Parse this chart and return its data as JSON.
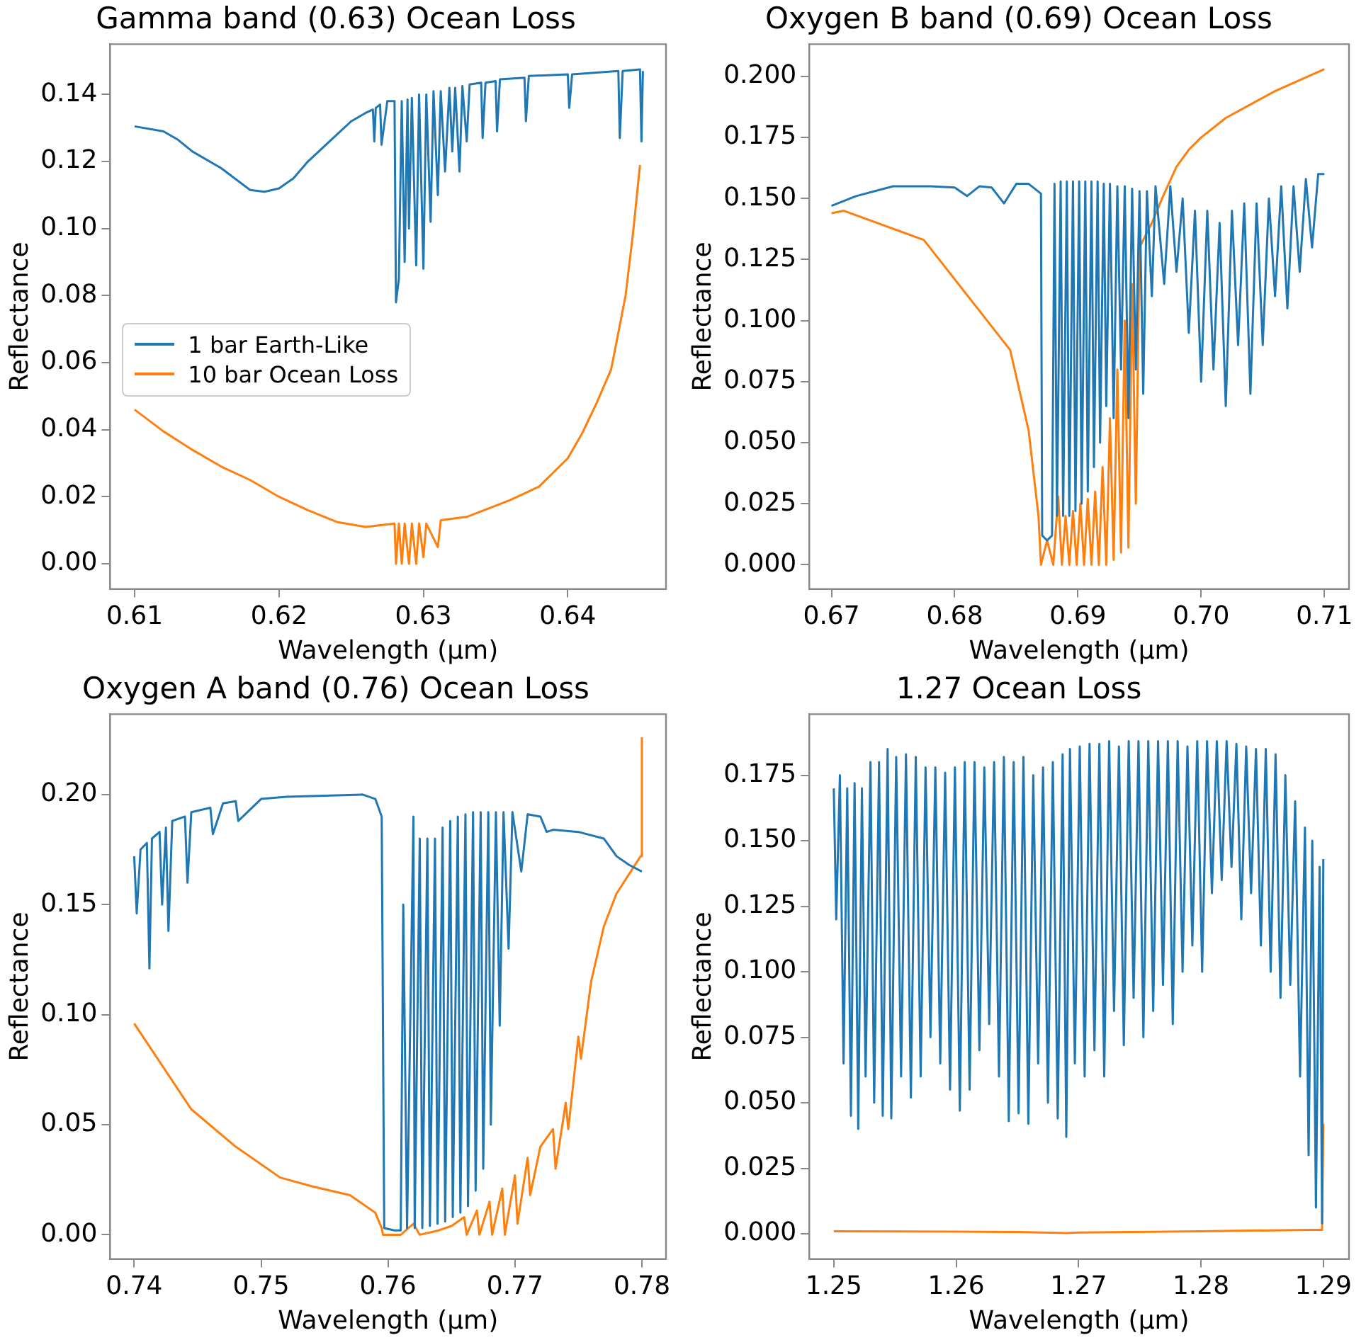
{
  "chart_data": [
    {
      "type": "line",
      "title": "Gamma band (0.63) Ocean Loss",
      "xlabel": "Wavelength (μm)",
      "ylabel": "Reflectance",
      "legend": "center left",
      "grid": false,
      "xlim": [
        0.6083,
        0.6468
      ],
      "xticks": [
        0.61,
        0.62,
        0.63,
        0.64
      ],
      "ylim": [
        -0.0075,
        0.155
      ],
      "yticks": [
        {
          "value": 0,
          "label": "0.00"
        },
        {
          "value": 0.02,
          "label": "0.02"
        },
        {
          "value": 0.04,
          "label": "0.04"
        },
        {
          "value": 0.06,
          "label": "0.06"
        },
        {
          "value": 0.08,
          "label": "0.08"
        },
        {
          "value": 0.1,
          "label": "0.10"
        },
        {
          "value": 0.12,
          "label": "0.12"
        },
        {
          "value": 0.14,
          "label": "0.14"
        }
      ],
      "series": [
        {
          "name": "1 bar Earth-Like",
          "color": "#1f77b4",
          "x": [
            0.61,
            0.612,
            0.613,
            0.614,
            0.616,
            0.618,
            0.619,
            0.62,
            0.621,
            0.622,
            0.624,
            0.625,
            0.626,
            0.6265,
            0.6266,
            0.6267,
            0.627,
            0.6271,
            0.6275,
            0.628,
            0.6281,
            0.6283,
            0.6285,
            0.6287,
            0.6289,
            0.629,
            0.6292,
            0.6295,
            0.6297,
            0.63,
            0.6302,
            0.6305,
            0.6307,
            0.631,
            0.6312,
            0.6315,
            0.6318,
            0.632,
            0.6322,
            0.6325,
            0.6327,
            0.633,
            0.6332,
            0.634,
            0.6341,
            0.6343,
            0.635,
            0.6351,
            0.6353,
            0.637,
            0.6371,
            0.6373,
            0.64,
            0.6401,
            0.6403,
            0.6435,
            0.6436,
            0.6438,
            0.645,
            0.6451,
            0.6452
          ],
          "values": [
            0.1305,
            0.129,
            0.1265,
            0.123,
            0.118,
            0.1115,
            0.111,
            0.112,
            0.115,
            0.12,
            0.128,
            0.132,
            0.1345,
            0.1355,
            0.126,
            0.136,
            0.137,
            0.125,
            0.138,
            0.138,
            0.078,
            0.085,
            0.138,
            0.09,
            0.1385,
            0.1,
            0.139,
            0.089,
            0.14,
            0.088,
            0.14,
            0.102,
            0.141,
            0.11,
            0.141,
            0.117,
            0.142,
            0.123,
            0.142,
            0.117,
            0.1425,
            0.126,
            0.143,
            0.1435,
            0.127,
            0.1435,
            0.144,
            0.129,
            0.1445,
            0.145,
            0.132,
            0.1455,
            0.146,
            0.136,
            0.146,
            0.147,
            0.127,
            0.147,
            0.1475,
            0.126,
            0.147
          ]
        },
        {
          "name": "10 bar Ocean Loss",
          "color": "#ff7f0e",
          "x": [
            0.61,
            0.612,
            0.614,
            0.616,
            0.618,
            0.62,
            0.622,
            0.624,
            0.626,
            0.628,
            0.6281,
            0.6283,
            0.6285,
            0.6287,
            0.629,
            0.6292,
            0.6295,
            0.6297,
            0.63,
            0.6302,
            0.631,
            0.6312,
            0.633,
            0.636,
            0.638,
            0.64,
            0.641,
            0.642,
            0.643,
            0.644,
            0.6445,
            0.645
          ],
          "values": [
            0.046,
            0.0395,
            0.034,
            0.029,
            0.025,
            0.02,
            0.016,
            0.0125,
            0.011,
            0.012,
            0,
            0.012,
            0,
            0.012,
            0,
            0.012,
            0,
            0.012,
            0.002,
            0.012,
            0.005,
            0.013,
            0.014,
            0.019,
            0.023,
            0.0315,
            0.039,
            0.048,
            0.058,
            0.08,
            0.098,
            0.119
          ]
        }
      ]
    },
    {
      "type": "line",
      "title": "Oxygen B band (0.69) Ocean Loss",
      "xlabel": "Wavelength (μm)",
      "ylabel": "Reflectance",
      "grid": false,
      "xlim": [
        0.6682,
        0.712
      ],
      "xticks": [
        0.67,
        0.68,
        0.69,
        {
          "value": 0.7,
          "label": "0.70"
        },
        0.71
      ],
      "ylim": [
        -0.0099,
        0.2132
      ],
      "yticks": [
        {
          "value": 0,
          "label": "0.000"
        },
        0.025,
        {
          "value": 0.05,
          "label": "0.050"
        },
        0.075,
        {
          "value": 0.1,
          "label": "0.100"
        },
        0.125,
        {
          "value": 0.15,
          "label": "0.150"
        },
        0.175,
        {
          "value": 0.2,
          "label": "0.200"
        }
      ],
      "series": [
        {
          "color": "#1f77b4",
          "x": [
            0.67,
            0.672,
            0.675,
            0.678,
            0.68,
            0.681,
            0.682,
            0.683,
            0.684,
            0.685,
            0.686,
            0.687,
            0.6871,
            0.6875,
            0.6879,
            0.6881,
            0.6883,
            0.6886,
            0.6888,
            0.6891,
            0.6893,
            0.6896,
            0.6898,
            0.6901,
            0.6903,
            0.6906,
            0.6908,
            0.6911,
            0.6913,
            0.6916,
            0.6918,
            0.6921,
            0.6923,
            0.6926,
            0.6929,
            0.6932,
            0.6935,
            0.6938,
            0.6941,
            0.6944,
            0.6947,
            0.695,
            0.6953,
            0.6956,
            0.696,
            0.6963,
            0.697,
            0.6975,
            0.698,
            0.6985,
            0.699,
            0.6995,
            0.7,
            0.7005,
            0.701,
            0.7015,
            0.702,
            0.7025,
            0.703,
            0.7035,
            0.704,
            0.7045,
            0.705,
            0.7055,
            0.706,
            0.7065,
            0.707,
            0.7075,
            0.708,
            0.7085,
            0.709,
            0.7095,
            0.71
          ],
          "values": [
            0.147,
            0.151,
            0.155,
            0.155,
            0.1545,
            0.151,
            0.155,
            0.1545,
            0.148,
            0.156,
            0.156,
            0.152,
            0.012,
            0.01,
            0.012,
            0.156,
            0.02,
            0.157,
            0.02,
            0.157,
            0.02,
            0.157,
            0.022,
            0.157,
            0.025,
            0.157,
            0.03,
            0.157,
            0.04,
            0.157,
            0.05,
            0.156,
            0.065,
            0.156,
            0.06,
            0.155,
            0.08,
            0.155,
            0.06,
            0.154,
            0.08,
            0.153,
            0.07,
            0.153,
            0.11,
            0.155,
            0.115,
            0.155,
            0.12,
            0.15,
            0.095,
            0.145,
            0.075,
            0.145,
            0.08,
            0.14,
            0.065,
            0.145,
            0.09,
            0.148,
            0.07,
            0.148,
            0.09,
            0.15,
            0.11,
            0.155,
            0.105,
            0.155,
            0.12,
            0.158,
            0.13,
            0.16,
            0.16
          ]
        },
        {
          "color": "#ff7f0e",
          "x": [
            0.67,
            0.671,
            0.6775,
            0.6845,
            0.686,
            0.6868,
            0.687,
            0.6875,
            0.688,
            0.6884,
            0.6887,
            0.689,
            0.6893,
            0.6896,
            0.6899,
            0.6902,
            0.6905,
            0.6908,
            0.6911,
            0.6914,
            0.6917,
            0.692,
            0.6923,
            0.6926,
            0.6929,
            0.6932,
            0.6935,
            0.6938,
            0.6941,
            0.6944,
            0.6947,
            0.695,
            0.696,
            0.697,
            0.698,
            0.699,
            0.7,
            0.702,
            0.706,
            0.71
          ],
          "values": [
            0.144,
            0.145,
            0.133,
            0.088,
            0.055,
            0.02,
            0,
            0.01,
            0,
            0.028,
            0,
            0.02,
            0,
            0.022,
            0,
            0.025,
            0,
            0.027,
            0,
            0.03,
            0,
            0.04,
            0,
            0.06,
            0.002,
            0.08,
            0.005,
            0.1,
            0.007,
            0.115,
            0.025,
            0.13,
            0.14,
            0.152,
            0.163,
            0.17,
            0.175,
            0.183,
            0.194,
            0.203
          ]
        }
      ]
    },
    {
      "type": "line",
      "title": "Oxygen A band (0.76) Ocean Loss",
      "xlabel": "Wavelength (μm)",
      "ylabel": "Reflectance",
      "grid": false,
      "xlim": [
        0.7381,
        0.7819
      ],
      "xticks": [
        0.74,
        0.75,
        0.76,
        0.77,
        0.78
      ],
      "ylim": [
        -0.011,
        0.2365
      ],
      "yticks": [
        {
          "value": 0,
          "label": "0.00"
        },
        0.05,
        {
          "value": 0.1,
          "label": "0.10"
        },
        0.15,
        {
          "value": 0.2,
          "label": "0.20"
        }
      ],
      "series": [
        {
          "color": "#1f77b4",
          "x": [
            0.74,
            0.7402,
            0.7405,
            0.741,
            0.7412,
            0.7414,
            0.742,
            0.7422,
            0.7425,
            0.7427,
            0.743,
            0.744,
            0.7442,
            0.7445,
            0.746,
            0.7462,
            0.747,
            0.748,
            0.7482,
            0.75,
            0.752,
            0.755,
            0.758,
            0.759,
            0.7595,
            0.7597,
            0.7605,
            0.761,
            0.7612,
            0.7615,
            0.762,
            0.7621,
            0.7625,
            0.7627,
            0.7631,
            0.7633,
            0.7637,
            0.7639,
            0.7643,
            0.7645,
            0.7649,
            0.7651,
            0.7655,
            0.7657,
            0.7661,
            0.7663,
            0.7667,
            0.7669,
            0.7673,
            0.7675,
            0.7679,
            0.7681,
            0.7685,
            0.7688,
            0.7691,
            0.7695,
            0.7698,
            0.7705,
            0.771,
            0.772,
            0.7725,
            0.773,
            0.775,
            0.777,
            0.778,
            0.779,
            0.78
          ],
          "values": [
            0.172,
            0.146,
            0.175,
            0.178,
            0.121,
            0.18,
            0.183,
            0.15,
            0.185,
            0.138,
            0.188,
            0.19,
            0.16,
            0.192,
            0.194,
            0.182,
            0.196,
            0.197,
            0.188,
            0.198,
            0.199,
            0.1995,
            0.2,
            0.198,
            0.19,
            0.003,
            0.002,
            0.002,
            0.15,
            0.003,
            0.19,
            0.003,
            0.18,
            0.003,
            0.18,
            0.004,
            0.18,
            0.005,
            0.185,
            0.006,
            0.188,
            0.008,
            0.19,
            0.01,
            0.191,
            0.013,
            0.192,
            0.02,
            0.192,
            0.03,
            0.192,
            0.05,
            0.192,
            0.095,
            0.192,
            0.13,
            0.192,
            0.165,
            0.191,
            0.19,
            0.183,
            0.184,
            0.183,
            0.18,
            0.172,
            0.168,
            0.165
          ]
        },
        {
          "color": "#ff7f0e",
          "x": [
            0.74,
            0.7445,
            0.748,
            0.7515,
            0.754,
            0.757,
            0.759,
            0.7595,
            0.7596,
            0.761,
            0.762,
            0.7625,
            0.764,
            0.765,
            0.766,
            0.7662,
            0.767,
            0.7672,
            0.768,
            0.7682,
            0.769,
            0.7692,
            0.77,
            0.7702,
            0.771,
            0.7712,
            0.772,
            0.773,
            0.7732,
            0.774,
            0.7742,
            0.775,
            0.7752,
            0.776,
            0.777,
            0.778,
            0.7799,
            0.78
          ],
          "values": [
            0.096,
            0.057,
            0.04,
            0.026,
            0.022,
            0.018,
            0.01,
            0.003,
            0,
            0,
            0.005,
            0,
            0.002,
            0.004,
            0.008,
            0,
            0.011,
            0,
            0.015,
            0,
            0.021,
            0,
            0.027,
            0.005,
            0.035,
            0.018,
            0.04,
            0.048,
            0.03,
            0.06,
            0.048,
            0.09,
            0.08,
            0.115,
            0.14,
            0.155,
            0.172,
            0.226
          ]
        }
      ]
    },
    {
      "type": "line",
      "title": "1.27 Ocean Loss",
      "xlabel": "Wavelength (μm)",
      "ylabel": "Reflectance",
      "grid": false,
      "xlim": [
        1.248,
        1.2921
      ],
      "xticks": [
        1.25,
        1.26,
        1.27,
        1.28,
        1.29
      ],
      "ylim": [
        -0.0096,
        0.1983
      ],
      "yticks": [
        {
          "value": 0,
          "label": "0.000"
        },
        0.025,
        {
          "value": 0.05,
          "label": "0.050"
        },
        0.075,
        {
          "value": 0.1,
          "label": "0.100"
        },
        0.125,
        {
          "value": 0.15,
          "label": "0.150"
        },
        0.175
      ],
      "series": [
        {
          "color": "#1f77b4",
          "x": [
            1.25,
            1.2502,
            1.2505,
            1.2508,
            1.2511,
            1.2514,
            1.2517,
            1.252,
            1.2523,
            1.2526,
            1.253,
            1.2533,
            1.2537,
            1.254,
            1.2544,
            1.2547,
            1.2551,
            1.2555,
            1.2559,
            1.2563,
            1.2567,
            1.2571,
            1.2575,
            1.2579,
            1.2583,
            1.2587,
            1.2591,
            1.2595,
            1.2599,
            1.2603,
            1.2607,
            1.2611,
            1.2615,
            1.2619,
            1.2623,
            1.2627,
            1.2631,
            1.2635,
            1.2639,
            1.2643,
            1.2647,
            1.2651,
            1.2655,
            1.2659,
            1.2663,
            1.2667,
            1.2671,
            1.2675,
            1.2679,
            1.2683,
            1.2687,
            1.269,
            1.2693,
            1.2697,
            1.2701,
            1.2705,
            1.2709,
            1.2713,
            1.2717,
            1.2721,
            1.2725,
            1.2729,
            1.2733,
            1.2737,
            1.2741,
            1.2745,
            1.2749,
            1.2753,
            1.2757,
            1.2761,
            1.2765,
            1.2769,
            1.2773,
            1.2777,
            1.2781,
            1.2785,
            1.2789,
            1.2793,
            1.2797,
            1.2801,
            1.2805,
            1.2809,
            1.2813,
            1.2817,
            1.2821,
            1.2825,
            1.2829,
            1.2833,
            1.2837,
            1.2841,
            1.2845,
            1.2849,
            1.2853,
            1.2857,
            1.2861,
            1.2865,
            1.2869,
            1.2873,
            1.2877,
            1.2881,
            1.2885,
            1.2888,
            1.2891,
            1.2894,
            1.2897,
            1.2899,
            1.29
          ],
          "values": [
            0.17,
            0.12,
            0.175,
            0.065,
            0.17,
            0.045,
            0.172,
            0.04,
            0.17,
            0.06,
            0.18,
            0.05,
            0.18,
            0.045,
            0.185,
            0.044,
            0.182,
            0.06,
            0.183,
            0.052,
            0.182,
            0.06,
            0.178,
            0.075,
            0.178,
            0.065,
            0.176,
            0.055,
            0.178,
            0.047,
            0.18,
            0.055,
            0.18,
            0.07,
            0.178,
            0.08,
            0.18,
            0.06,
            0.182,
            0.043,
            0.18,
            0.046,
            0.182,
            0.042,
            0.175,
            0.065,
            0.178,
            0.05,
            0.18,
            0.044,
            0.183,
            0.037,
            0.185,
            0.065,
            0.186,
            0.06,
            0.187,
            0.07,
            0.187,
            0.06,
            0.188,
            0.085,
            0.186,
            0.072,
            0.188,
            0.09,
            0.188,
            0.075,
            0.188,
            0.085,
            0.188,
            0.095,
            0.188,
            0.08,
            0.188,
            0.1,
            0.186,
            0.11,
            0.188,
            0.1,
            0.188,
            0.13,
            0.188,
            0.135,
            0.188,
            0.14,
            0.187,
            0.12,
            0.186,
            0.13,
            0.185,
            0.11,
            0.185,
            0.1,
            0.183,
            0.09,
            0.175,
            0.095,
            0.165,
            0.06,
            0.155,
            0.03,
            0.15,
            0.01,
            0.14,
            0.004,
            0.143
          ]
        },
        {
          "color": "#ff7f0e",
          "x": [
            1.25,
            1.26,
            1.265,
            1.269,
            1.27,
            1.28,
            1.289,
            1.2899,
            1.29
          ],
          "values": [
            0.001,
            0.0008,
            0.0007,
            0.0003,
            0.0005,
            0.001,
            0.0015,
            0.0015,
            0.042
          ]
        }
      ]
    }
  ]
}
